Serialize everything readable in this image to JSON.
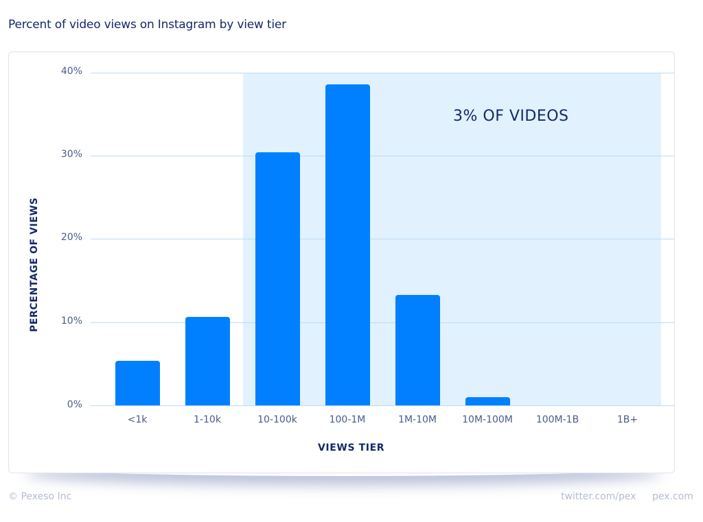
{
  "title": "Percent of video views on Instagram by view tier",
  "footer": {
    "copyright": "© Pexeso Inc",
    "twitter": "twitter.com/pex",
    "site": "pex.com"
  },
  "colors": {
    "bar": "#0080ff",
    "highlight_region": "#e1f1fd",
    "gridline": "#b9dcf7",
    "title": "#13286a"
  },
  "chart_data": {
    "type": "bar",
    "title": "Percent of video views on Instagram by view tier",
    "xlabel": "VIEWS TIER",
    "ylabel": "PERCENTAGE OF VIEWS",
    "categories": [
      "<1k",
      "1-10k",
      "10-100k",
      "100-1M",
      "1M-10M",
      "10M-100M",
      "100M-1B",
      "1B+"
    ],
    "values": [
      5.4,
      10.6,
      30.4,
      38.6,
      13.3,
      1.0,
      0,
      0
    ],
    "unit": "%",
    "ylim": [
      0,
      40
    ],
    "yticks": [
      "0%",
      "10%",
      "20%",
      "30%",
      "40%"
    ],
    "grid": true,
    "legend": null,
    "annotations": [
      {
        "text": "3% OF VIDEOS",
        "shaded_range": [
          "10-100k",
          "1B+"
        ]
      }
    ]
  }
}
